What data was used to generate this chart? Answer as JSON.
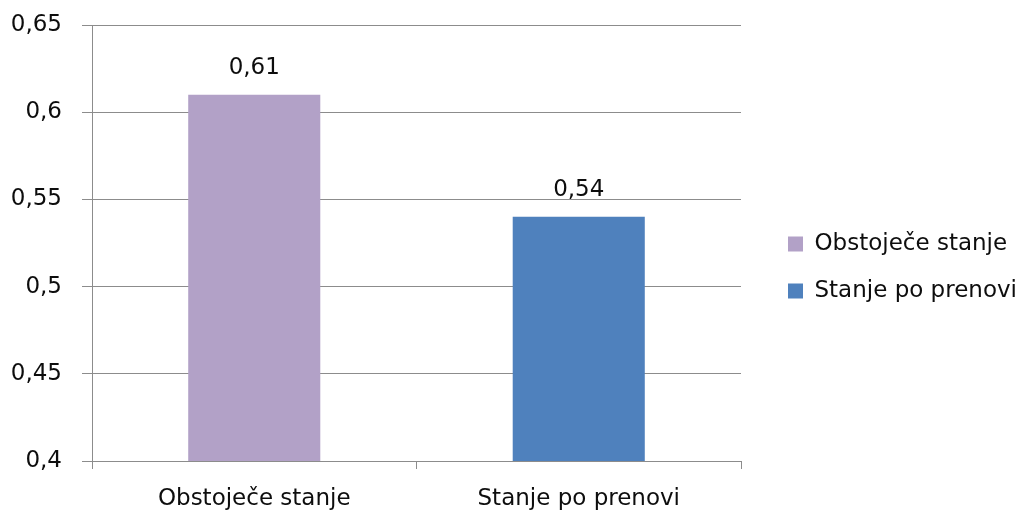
{
  "chart_data": {
    "type": "bar",
    "categories": [
      "Obstoječe stanje",
      "Stanje po prenovi"
    ],
    "series": [
      {
        "name": "Obstoječe stanje",
        "color": "#b2a1c7",
        "values": [
          0.61,
          null
        ],
        "value_labels": [
          "0,61",
          null
        ]
      },
      {
        "name": "Stanje po prenovi",
        "color": "#4f81bd",
        "values": [
          null,
          0.54
        ],
        "value_labels": [
          null,
          "0,54"
        ]
      }
    ],
    "ylim": [
      0.4,
      0.65
    ],
    "yticks": [
      {
        "value": 0.4,
        "label": "0,4"
      },
      {
        "value": 0.45,
        "label": "0,45"
      },
      {
        "value": 0.5,
        "label": "0,5"
      },
      {
        "value": 0.55,
        "label": "0,55"
      },
      {
        "value": 0.6,
        "label": "0,6"
      },
      {
        "value": 0.65,
        "label": "0,65"
      }
    ],
    "grid": "y",
    "legend": "right"
  }
}
